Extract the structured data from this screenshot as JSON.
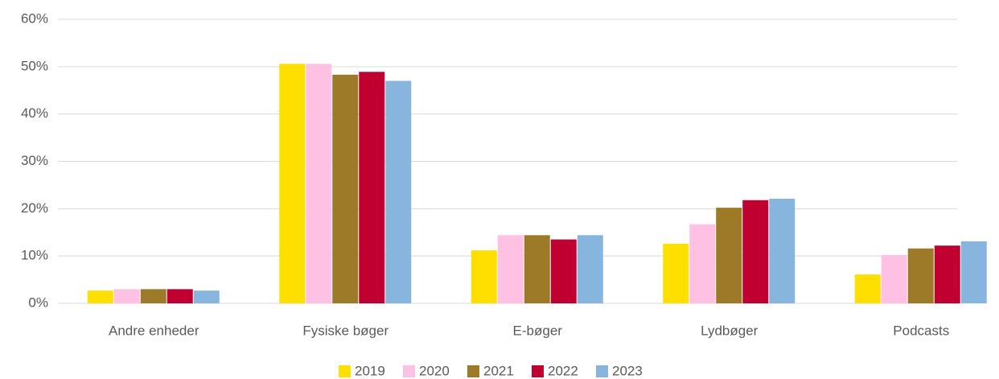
{
  "chart_data": {
    "type": "bar",
    "categories": [
      "Andre enheder",
      "Fysiske bøger",
      "E-bøger",
      "Lydbøger",
      "Podcasts"
    ],
    "series": [
      {
        "name": "2019",
        "color": "#ffdf00",
        "values": [
          2.7,
          50.6,
          11.2,
          12.6,
          6.1
        ]
      },
      {
        "name": "2020",
        "color": "#ffc1e3",
        "values": [
          3.0,
          50.6,
          14.4,
          16.7,
          10.2
        ]
      },
      {
        "name": "2021",
        "color": "#9c7a27",
        "values": [
          3.0,
          48.3,
          14.4,
          20.2,
          11.6
        ]
      },
      {
        "name": "2022",
        "color": "#c00030",
        "values": [
          3.0,
          48.9,
          13.5,
          21.8,
          12.2
        ]
      },
      {
        "name": "2023",
        "color": "#88b5dd",
        "values": [
          2.7,
          47.0,
          14.4,
          22.1,
          13.1
        ]
      }
    ],
    "ylim": [
      0,
      60
    ],
    "yticks": [
      {
        "value": 0,
        "label": "0%"
      },
      {
        "value": 10,
        "label": "10%"
      },
      {
        "value": 20,
        "label": "20%"
      },
      {
        "value": 30,
        "label": "30%"
      },
      {
        "value": 40,
        "label": "40%"
      },
      {
        "value": 50,
        "label": "50%"
      },
      {
        "value": 60,
        "label": "60%"
      }
    ],
    "grid": true,
    "legend": "bottom"
  }
}
